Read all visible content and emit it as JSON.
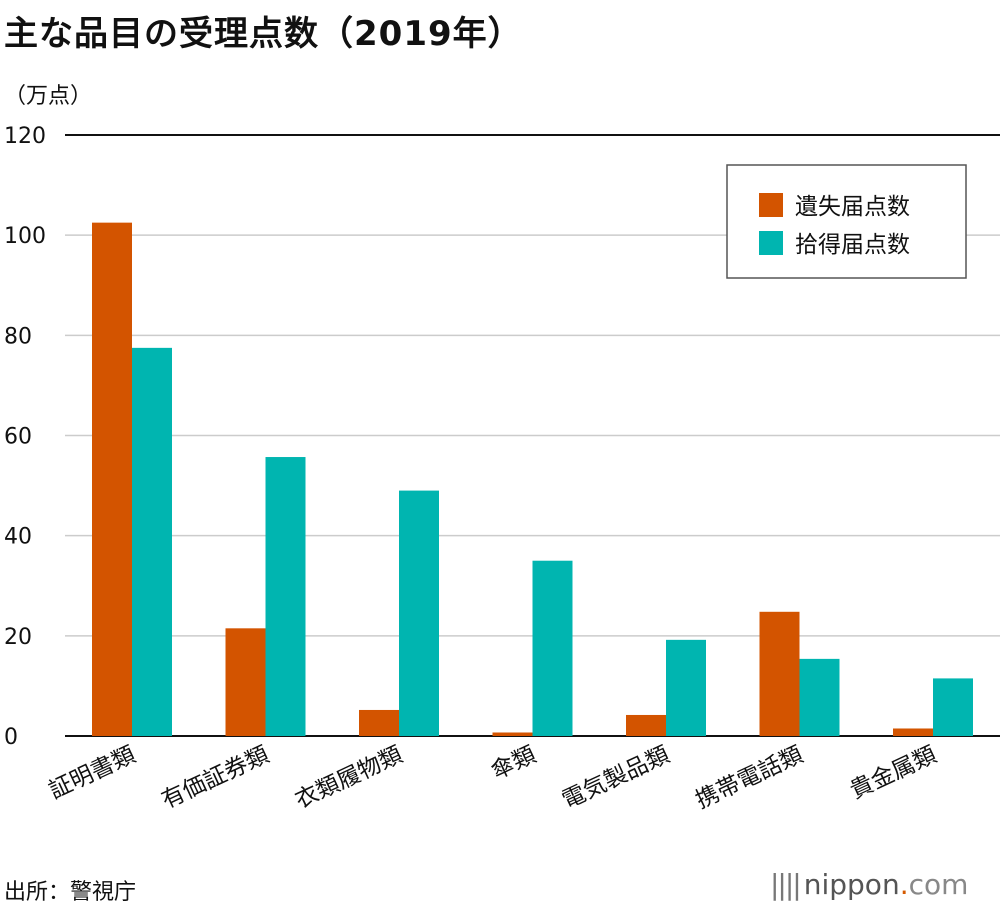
{
  "title": "主な品目の受理点数（2019年）",
  "unit_label": "（万点）",
  "source": "出所：警視庁",
  "brand": {
    "name": "nippon",
    "dot": ".",
    "suffix": "com",
    "marks": "||||"
  },
  "colors": {
    "series_lost": "#d35400",
    "series_found": "#00b5b0",
    "grid": "#cccccc",
    "axis": "#111111"
  },
  "chart_data": {
    "type": "bar",
    "title": "主な品目の受理点数（2019年）",
    "ylabel": "（万点）",
    "xlabel": "",
    "ylim": [
      0,
      120
    ],
    "yticks": [
      0,
      20,
      40,
      60,
      80,
      100,
      120
    ],
    "grid": true,
    "legend_position": "top-right",
    "categories": [
      "証明書類",
      "有価証券類",
      "衣類履物類",
      "傘類",
      "電気製品類",
      "携帯電話類",
      "貴金属類"
    ],
    "series": [
      {
        "name": "遺失届点数",
        "values": [
          102.5,
          21.5,
          5.2,
          0.7,
          4.2,
          24.8,
          1.5
        ]
      },
      {
        "name": "拾得届点数",
        "values": [
          77.5,
          55.7,
          49.0,
          35.0,
          19.2,
          15.4,
          11.5
        ]
      }
    ]
  }
}
